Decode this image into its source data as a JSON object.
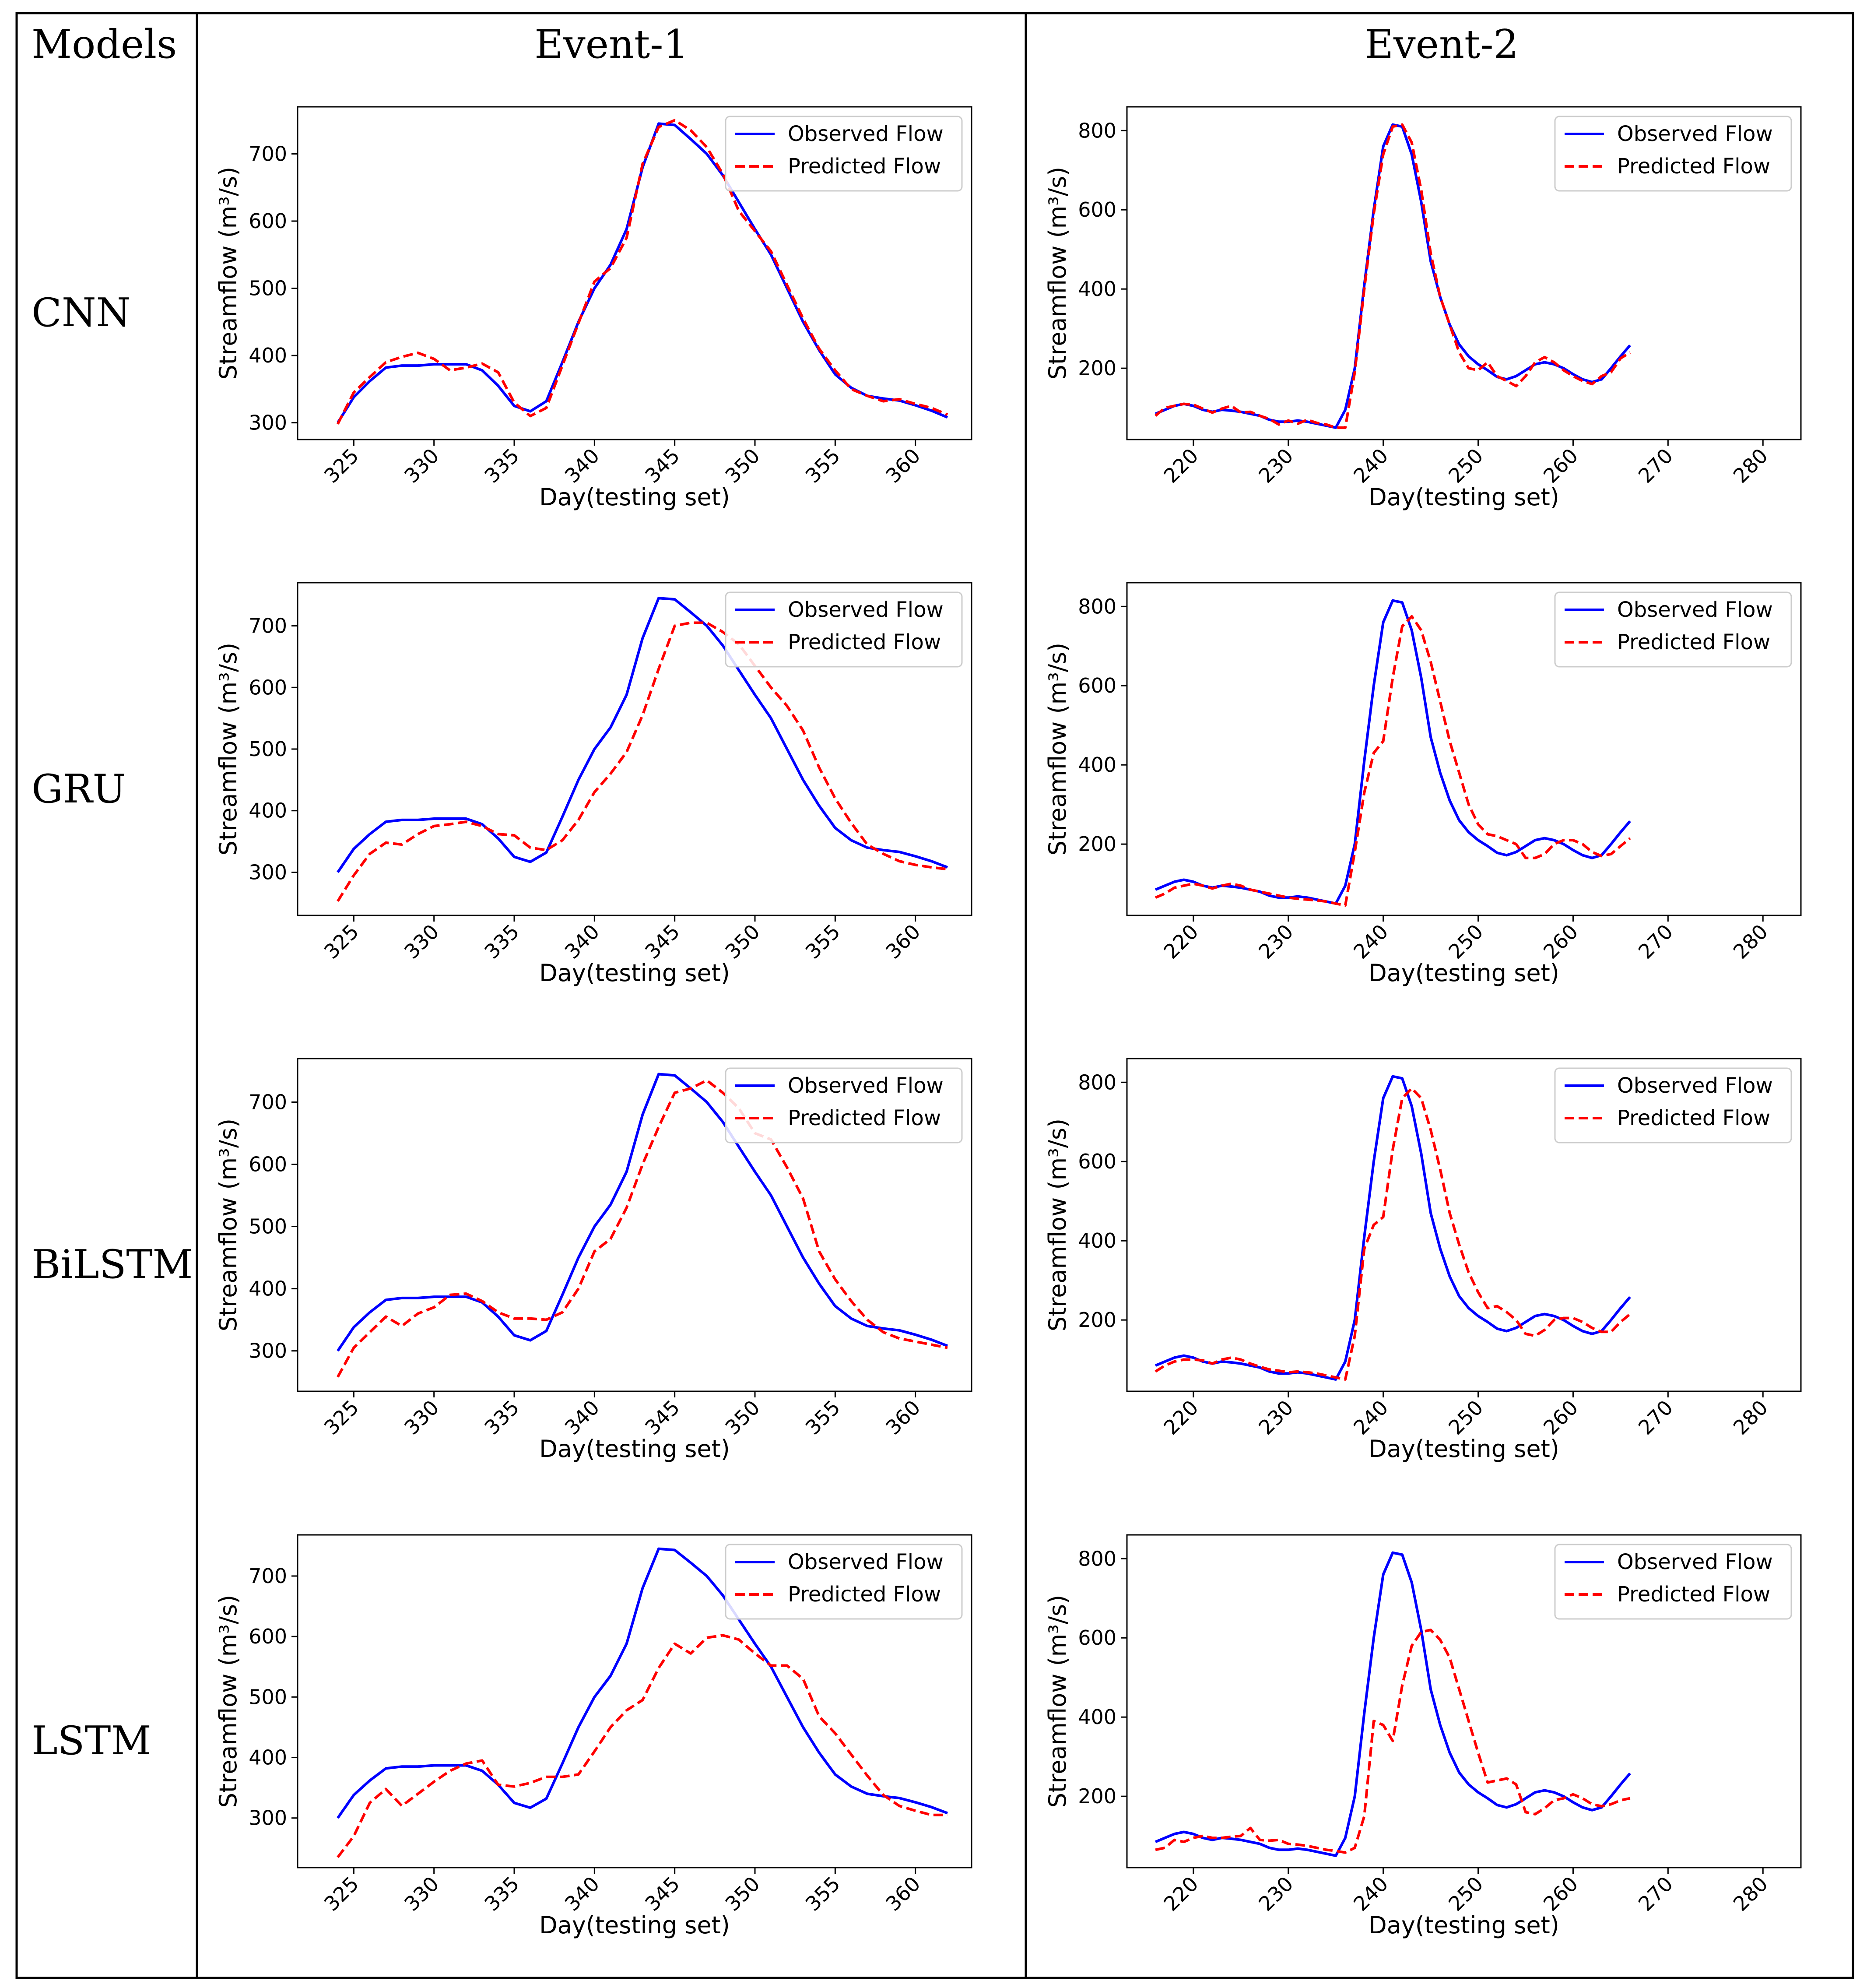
{
  "table": {
    "models_header": "Models",
    "event1_header": "Event-1",
    "event2_header": "Event-2",
    "models": [
      "CNN",
      "GRU",
      "BiLSTM",
      "LSTM"
    ]
  },
  "colors": {
    "observed": "#0000ff",
    "predicted": "#ff0000",
    "frame": "#000000"
  },
  "chart_data": [
    {
      "id": "cnn-event1",
      "type": "line",
      "model": "CNN",
      "event": "Event-1",
      "xlabel": "Day(testing set)",
      "ylabel": "Streamflow (m³/s)",
      "xlim": [
        321.5,
        363.5
      ],
      "ylim": [
        275,
        770
      ],
      "xticks": [
        325,
        330,
        335,
        340,
        345,
        350,
        355,
        360
      ],
      "yticks": [
        300,
        400,
        500,
        600,
        700
      ],
      "x_start": 324,
      "legend_position": "top-right",
      "series": [
        {
          "name": "Observed Flow",
          "style": "solid",
          "values": [
            300,
            338,
            362,
            382,
            385,
            385,
            387,
            387,
            387,
            378,
            355,
            325,
            317,
            332,
            390,
            450,
            500,
            535,
            588,
            680,
            745,
            743,
            722,
            700,
            668,
            628,
            588,
            550,
            500,
            450,
            408,
            372,
            352,
            340,
            336,
            333,
            326,
            318,
            308
          ]
        },
        {
          "name": "Predicted Flow",
          "style": "dashed",
          "values": [
            298,
            345,
            368,
            390,
            398,
            404,
            395,
            378,
            382,
            388,
            375,
            330,
            310,
            322,
            385,
            448,
            510,
            530,
            575,
            685,
            740,
            750,
            735,
            710,
            670,
            615,
            585,
            555,
            505,
            455,
            410,
            378,
            350,
            340,
            332,
            335,
            328,
            322,
            312
          ]
        }
      ]
    },
    {
      "id": "cnn-event2",
      "type": "line",
      "model": "CNN",
      "event": "Event-2",
      "xlabel": "Day(testing set)",
      "ylabel": "Streamflow (m³/s)",
      "xlim": [
        213,
        284
      ],
      "ylim": [
        20,
        860
      ],
      "xticks": [
        220,
        230,
        240,
        250,
        260,
        270,
        280
      ],
      "yticks": [
        200,
        400,
        600,
        800
      ],
      "x_start": 216,
      "legend_position": "top-right",
      "series": [
        {
          "name": "Observed Flow",
          "style": "solid",
          "values": [
            85,
            95,
            105,
            110,
            105,
            95,
            90,
            95,
            93,
            90,
            85,
            80,
            70,
            65,
            65,
            68,
            65,
            60,
            55,
            50,
            95,
            200,
            410,
            600,
            760,
            815,
            810,
            740,
            620,
            470,
            380,
            310,
            260,
            230,
            210,
            195,
            178,
            172,
            180,
            195,
            210,
            215,
            210,
            200,
            185,
            172,
            165,
            172,
            200,
            230,
            258
          ]
        },
        {
          "name": "Predicted Flow",
          "style": "dashed",
          "values": [
            80,
            100,
            105,
            110,
            108,
            98,
            88,
            98,
            105,
            88,
            90,
            80,
            72,
            58,
            68,
            60,
            70,
            62,
            58,
            50,
            50,
            190,
            400,
            590,
            740,
            810,
            815,
            770,
            650,
            490,
            380,
            310,
            240,
            200,
            195,
            215,
            180,
            168,
            155,
            180,
            215,
            228,
            215,
            195,
            180,
            168,
            160,
            180,
            190,
            225,
            240
          ]
        }
      ]
    },
    {
      "id": "gru-event1",
      "type": "line",
      "model": "GRU",
      "event": "Event-1",
      "xlabel": "Day(testing set)",
      "ylabel": "Streamflow (m³/s)",
      "xlim": [
        321.5,
        363.5
      ],
      "ylim": [
        230,
        770
      ],
      "xticks": [
        325,
        330,
        335,
        340,
        345,
        350,
        355,
        360
      ],
      "yticks": [
        300,
        400,
        500,
        600,
        700
      ],
      "x_start": 324,
      "legend_position": "top-right",
      "series": [
        {
          "name": "Observed Flow",
          "style": "solid",
          "values": [
            300,
            338,
            362,
            382,
            385,
            385,
            387,
            387,
            387,
            378,
            355,
            325,
            317,
            332,
            390,
            450,
            500,
            535,
            588,
            680,
            745,
            743,
            722,
            700,
            668,
            628,
            588,
            550,
            500,
            450,
            408,
            372,
            352,
            340,
            336,
            333,
            326,
            318,
            308
          ]
        },
        {
          "name": "Predicted Flow",
          "style": "dashed",
          "values": [
            253,
            295,
            330,
            348,
            345,
            362,
            375,
            378,
            382,
            375,
            362,
            360,
            340,
            336,
            352,
            385,
            430,
            460,
            495,
            555,
            630,
            700,
            705,
            705,
            690,
            670,
            635,
            600,
            570,
            530,
            470,
            420,
            380,
            345,
            330,
            318,
            312,
            308,
            305
          ]
        }
      ]
    },
    {
      "id": "gru-event2",
      "type": "line",
      "model": "GRU",
      "event": "Event-2",
      "xlabel": "Day(testing set)",
      "ylabel": "Streamflow (m³/s)",
      "xlim": [
        213,
        284
      ],
      "ylim": [
        20,
        860
      ],
      "xticks": [
        220,
        230,
        240,
        250,
        260,
        270,
        280
      ],
      "yticks": [
        200,
        400,
        600,
        800
      ],
      "x_start": 216,
      "legend_position": "top-right",
      "series": [
        {
          "name": "Observed Flow",
          "style": "solid",
          "values": [
            85,
            95,
            105,
            110,
            105,
            95,
            90,
            95,
            93,
            90,
            85,
            80,
            70,
            65,
            65,
            68,
            65,
            60,
            55,
            50,
            95,
            200,
            410,
            600,
            760,
            815,
            810,
            740,
            620,
            470,
            380,
            310,
            260,
            230,
            210,
            195,
            178,
            172,
            180,
            195,
            210,
            215,
            210,
            200,
            185,
            172,
            165,
            172,
            200,
            230,
            258
          ]
        },
        {
          "name": "Predicted Flow",
          "style": "dashed",
          "values": [
            65,
            75,
            90,
            95,
            100,
            95,
            88,
            95,
            100,
            95,
            85,
            80,
            75,
            70,
            65,
            62,
            60,
            58,
            55,
            50,
            45,
            180,
            330,
            430,
            460,
            620,
            750,
            775,
            740,
            660,
            560,
            460,
            380,
            300,
            250,
            225,
            220,
            210,
            200,
            165,
            165,
            175,
            200,
            210,
            210,
            200,
            180,
            170,
            175,
            195,
            215
          ]
        }
      ]
    },
    {
      "id": "bilstm-event1",
      "type": "line",
      "model": "BiLSTM",
      "event": "Event-1",
      "xlabel": "Day(testing set)",
      "ylabel": "Streamflow (m³/s)",
      "xlim": [
        321.5,
        363.5
      ],
      "ylim": [
        235,
        770
      ],
      "xticks": [
        325,
        330,
        335,
        340,
        345,
        350,
        355,
        360
      ],
      "yticks": [
        300,
        400,
        500,
        600,
        700
      ],
      "x_start": 324,
      "legend_position": "top-right",
      "series": [
        {
          "name": "Observed Flow",
          "style": "solid",
          "values": [
            300,
            338,
            362,
            382,
            385,
            385,
            387,
            387,
            387,
            378,
            355,
            325,
            317,
            332,
            390,
            450,
            500,
            535,
            588,
            680,
            745,
            743,
            722,
            700,
            668,
            628,
            588,
            550,
            500,
            450,
            408,
            372,
            352,
            340,
            336,
            333,
            326,
            318,
            308
          ]
        },
        {
          "name": "Predicted Flow",
          "style": "dashed",
          "values": [
            258,
            305,
            330,
            355,
            340,
            360,
            370,
            390,
            392,
            380,
            362,
            352,
            352,
            350,
            362,
            400,
            460,
            480,
            530,
            600,
            660,
            715,
            722,
            735,
            715,
            690,
            650,
            640,
            595,
            545,
            460,
            415,
            380,
            350,
            330,
            320,
            315,
            310,
            305
          ]
        }
      ]
    },
    {
      "id": "bilstm-event2",
      "type": "line",
      "model": "BiLSTM",
      "event": "Event-2",
      "xlabel": "Day(testing set)",
      "ylabel": "Streamflow (m³/s)",
      "xlim": [
        213,
        284
      ],
      "ylim": [
        20,
        860
      ],
      "xticks": [
        220,
        230,
        240,
        250,
        260,
        270,
        280
      ],
      "yticks": [
        200,
        400,
        600,
        800
      ],
      "x_start": 216,
      "legend_position": "top-right",
      "series": [
        {
          "name": "Observed Flow",
          "style": "solid",
          "values": [
            85,
            95,
            105,
            110,
            105,
            95,
            90,
            95,
            93,
            90,
            85,
            80,
            70,
            65,
            65,
            68,
            65,
            60,
            55,
            50,
            95,
            200,
            410,
            600,
            760,
            815,
            810,
            740,
            620,
            470,
            380,
            310,
            260,
            230,
            210,
            195,
            178,
            172,
            180,
            195,
            210,
            215,
            210,
            200,
            185,
            172,
            165,
            172,
            200,
            230,
            258
          ]
        },
        {
          "name": "Predicted Flow",
          "style": "dashed",
          "values": [
            70,
            85,
            95,
            100,
            100,
            98,
            90,
            100,
            105,
            100,
            90,
            82,
            75,
            72,
            68,
            70,
            68,
            65,
            60,
            55,
            50,
            160,
            380,
            440,
            460,
            630,
            760,
            785,
            760,
            680,
            580,
            470,
            390,
            320,
            270,
            230,
            235,
            220,
            200,
            165,
            160,
            175,
            200,
            205,
            205,
            195,
            180,
            170,
            170,
            195,
            215
          ]
        }
      ]
    },
    {
      "id": "lstm-event1",
      "type": "line",
      "model": "LSTM",
      "event": "Event-1",
      "xlabel": "Day(testing set)",
      "ylabel": "Streamflow (m³/s)",
      "xlim": [
        321.5,
        363.5
      ],
      "ylim": [
        218,
        768
      ],
      "xticks": [
        325,
        330,
        335,
        340,
        345,
        350,
        355,
        360
      ],
      "yticks": [
        300,
        400,
        500,
        600,
        700
      ],
      "x_start": 324,
      "legend_position": "top-right",
      "series": [
        {
          "name": "Observed Flow",
          "style": "solid",
          "values": [
            300,
            338,
            362,
            382,
            385,
            385,
            387,
            387,
            387,
            378,
            355,
            325,
            317,
            332,
            390,
            450,
            500,
            535,
            588,
            680,
            745,
            743,
            722,
            700,
            668,
            628,
            588,
            550,
            500,
            450,
            408,
            372,
            352,
            340,
            336,
            333,
            326,
            318,
            308
          ]
        },
        {
          "name": "Predicted Flow",
          "style": "dashed",
          "values": [
            235,
            270,
            325,
            348,
            320,
            340,
            360,
            378,
            390,
            395,
            355,
            352,
            358,
            368,
            368,
            372,
            410,
            450,
            478,
            495,
            548,
            588,
            572,
            598,
            602,
            595,
            572,
            552,
            552,
            530,
            468,
            440,
            405,
            370,
            338,
            320,
            312,
            305,
            305
          ]
        }
      ]
    },
    {
      "id": "lstm-event2",
      "type": "line",
      "model": "LSTM",
      "event": "Event-2",
      "xlabel": "Day(testing set)",
      "ylabel": "Streamflow (m³/s)",
      "xlim": [
        213,
        284
      ],
      "ylim": [
        20,
        860
      ],
      "xticks": [
        220,
        230,
        240,
        250,
        260,
        270,
        280
      ],
      "yticks": [
        200,
        400,
        600,
        800
      ],
      "x_start": 216,
      "legend_position": "top-right",
      "series": [
        {
          "name": "Observed Flow",
          "style": "solid",
          "values": [
            85,
            95,
            105,
            110,
            105,
            95,
            90,
            95,
            93,
            90,
            85,
            80,
            70,
            65,
            65,
            68,
            65,
            60,
            55,
            50,
            95,
            200,
            410,
            600,
            760,
            815,
            810,
            740,
            620,
            470,
            380,
            310,
            260,
            230,
            210,
            195,
            178,
            172,
            180,
            195,
            210,
            215,
            210,
            200,
            185,
            172,
            165,
            172,
            200,
            230,
            258
          ]
        },
        {
          "name": "Predicted Flow",
          "style": "dashed",
          "values": [
            65,
            70,
            90,
            85,
            95,
            100,
            95,
            95,
            98,
            100,
            120,
            90,
            88,
            90,
            80,
            78,
            75,
            70,
            65,
            62,
            58,
            70,
            150,
            390,
            380,
            340,
            480,
            580,
            615,
            620,
            595,
            550,
            470,
            390,
            310,
            235,
            240,
            245,
            230,
            160,
            155,
            170,
            190,
            195,
            205,
            195,
            180,
            175,
            180,
            190,
            195
          ]
        }
      ]
    }
  ]
}
